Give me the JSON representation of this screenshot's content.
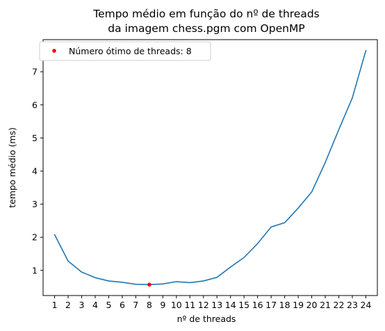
{
  "chart_data": {
    "type": "line",
    "title": [
      "Tempo médio em função do nº de threads",
      "da imagem chess.pgm com OpenMP"
    ],
    "xlabel": "nº de threads",
    "ylabel": "tempo médio (ms)",
    "x": [
      1,
      2,
      3,
      4,
      5,
      6,
      7,
      8,
      9,
      10,
      11,
      12,
      13,
      14,
      15,
      16,
      17,
      18,
      19,
      20,
      21,
      22,
      23,
      24
    ],
    "series": [
      {
        "values": [
          2.08,
          1.28,
          0.95,
          0.78,
          0.68,
          0.64,
          0.58,
          0.57,
          0.59,
          0.66,
          0.63,
          0.68,
          0.79,
          1.1,
          1.39,
          1.81,
          2.31,
          2.44,
          2.88,
          3.37,
          4.26,
          5.25,
          6.21,
          7.64
        ],
        "color": "#1f77b4"
      }
    ],
    "highlight": {
      "x": 8,
      "y": 0.57,
      "color": "#ff0000",
      "label": "Número ótimo de threads: 8"
    },
    "xticks": [
      1,
      2,
      3,
      4,
      5,
      6,
      7,
      8,
      9,
      10,
      11,
      12,
      13,
      14,
      15,
      16,
      17,
      18,
      19,
      20,
      21,
      22,
      23,
      24
    ],
    "yticks": [
      1,
      2,
      3,
      4,
      5,
      6,
      7
    ],
    "xlim": [
      0.15,
      24.85
    ],
    "ylim": [
      0.24,
      7.97
    ],
    "legend_position": "top-left",
    "grid": false
  }
}
